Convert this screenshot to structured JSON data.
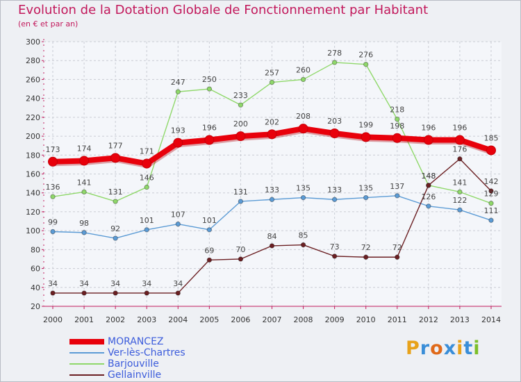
{
  "title": "Evolution de la Dotation Globale de Fonctionnement par Habitant",
  "subtitle": "(en € et par an)",
  "logo": {
    "text": "Proxiti",
    "letters": [
      "P",
      "r",
      "o",
      "x",
      "i",
      "t",
      "i"
    ],
    "colors": [
      "#e8a21a",
      "#3a8ed8",
      "#e06a1a",
      "#3a8ed8",
      "#e8a21a",
      "#3a8ed8",
      "#7cbf2a"
    ]
  },
  "chart_data": {
    "type": "line",
    "title": "Evolution de la Dotation Globale de Fonctionnement par Habitant",
    "ylabel": "(en € et par an)",
    "xlabel": "",
    "x": [
      "2000",
      "2001",
      "2002",
      "2003",
      "2004",
      "2005",
      "2006",
      "2007",
      "2008",
      "2009",
      "2010",
      "2011",
      "2012",
      "2013",
      "2014"
    ],
    "ylim": [
      20,
      300
    ],
    "yticks": [
      20,
      40,
      60,
      80,
      100,
      120,
      140,
      160,
      180,
      200,
      220,
      240,
      260,
      280,
      300
    ],
    "grid": true,
    "legend_position": "bottom-left",
    "series": [
      {
        "name": "MORANCEZ",
        "color": "#e8000b",
        "values": [
          173,
          174,
          177,
          171,
          193,
          196,
          200,
          202,
          208,
          203,
          199,
          198,
          196,
          196,
          185
        ]
      },
      {
        "name": "Ver-lès-Chartres",
        "color": "#5b9bd5",
        "values": [
          99,
          98,
          92,
          101,
          107,
          101,
          131,
          133,
          135,
          133,
          135,
          137,
          126,
          122,
          111
        ]
      },
      {
        "name": "Barjouville",
        "color": "#8fd86a",
        "values": [
          136,
          141,
          131,
          146,
          247,
          250,
          233,
          257,
          260,
          278,
          276,
          218,
          148,
          141,
          129
        ]
      },
      {
        "name": "Gellainville",
        "color": "#6b1f22",
        "values": [
          34,
          34,
          34,
          34,
          34,
          69,
          70,
          84,
          85,
          73,
          72,
          72,
          148,
          176,
          142
        ]
      }
    ]
  }
}
